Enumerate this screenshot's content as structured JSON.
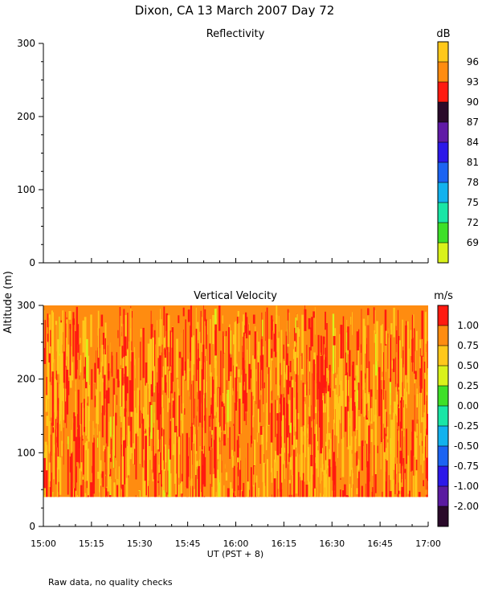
{
  "figure": {
    "title": "Dixon, CA 13 March 2007  Day  72",
    "footnote": "Raw data, no quality checks",
    "ylabel": "Altitude  (m)",
    "xlabel": "UT   (PST + 8)"
  },
  "chart_data": [
    {
      "type": "heatmap",
      "title": "Reflectivity",
      "ylim": [
        0,
        300
      ],
      "yticks": [
        "0",
        "100",
        "200",
        "300"
      ],
      "xlim": [
        "15:00",
        "17:00"
      ],
      "empty": true,
      "colorbar": {
        "unit": "dB",
        "levels": [
          "69",
          "72",
          "75",
          "78",
          "81",
          "84",
          "87",
          "90",
          "93",
          "96"
        ],
        "colors": [
          "#d9f21b",
          "#3ee028",
          "#19e6a6",
          "#12b2ee",
          "#1c63f2",
          "#2c18e8",
          "#601aa6",
          "#2a0a2a",
          "#ff1a10",
          "#ff8c10",
          "#ffc81a"
        ]
      }
    },
    {
      "type": "heatmap",
      "title": "Vertical Velocity",
      "ylim": [
        0,
        300
      ],
      "yticks": [
        "0",
        "100",
        "200",
        "300"
      ],
      "xlim": [
        "15:00",
        "17:00"
      ],
      "xticks": [
        "15:00",
        "15:15",
        "15:30",
        "15:45",
        "16:00",
        "16:15",
        "16:30",
        "16:45",
        "17:00"
      ],
      "data_altitude_range": [
        40,
        300
      ],
      "dominant_range": [
        0.5,
        1.25
      ],
      "colorbar": {
        "unit": "m/s",
        "levels": [
          "-2.00",
          "-1.00",
          "-0.75",
          "-0.50",
          "-0.25",
          "0.00",
          "0.25",
          "0.50",
          "0.75",
          "1.00"
        ],
        "colors": [
          "#2a0a2a",
          "#5a1aa0",
          "#2c18e8",
          "#1c63f2",
          "#12b2ee",
          "#19e6a6",
          "#3ee028",
          "#d9f21b",
          "#ffc81a",
          "#ff8c10",
          "#ff1a10"
        ]
      }
    }
  ]
}
